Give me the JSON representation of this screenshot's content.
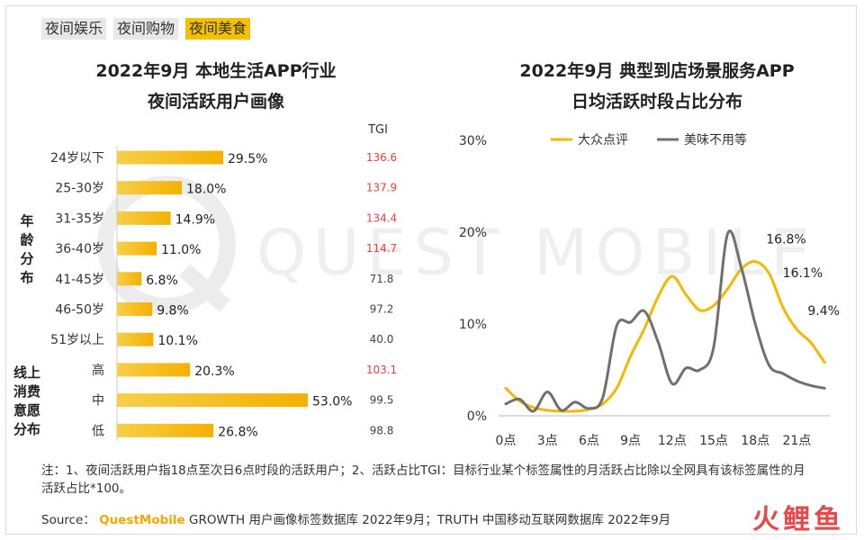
{
  "tabs": [
    {
      "label": "夜间娱乐",
      "active": false
    },
    {
      "label": "夜间购物",
      "active": false
    },
    {
      "label": "夜间美食",
      "active": true
    }
  ],
  "watermark": "QUEST MOBILE",
  "left_title_line1": "2022年9月 本地生活APP行业",
  "left_title_line2": "夜间活跃用户画像",
  "right_title_line1": "2022年9月 典型到店场景服务APP",
  "right_title_line2": "日均活跃时段占比分布",
  "note": "注：1、夜间活跃用户指18点至次日6点时段的活跃用户；2、活跃占比TGI：目标行业某个标签属性的月活跃占比除以全网具有该标签属性的月活跃占比*100。",
  "source_prefix": "Source：",
  "source_brand": "QuestMobile",
  "source_rest": "GROWTH 用户画像标签数据库 2022年9月；TRUTH 中国移动互联网数据库 2022年9月",
  "brand_logo": "火鲤鱼",
  "colors": {
    "gold": "#f5b800",
    "gray": "#707070",
    "red": "#e84040"
  },
  "chart_data": [
    {
      "type": "bar",
      "orientation": "horizontal",
      "title": "2022年9月 本地生活APP行业 夜间活跃用户画像",
      "tgi_header": "TGI",
      "groups": [
        {
          "label": "年龄分布",
          "start": 0,
          "end": 6
        },
        {
          "label": "线上消费意愿分布",
          "start": 7,
          "end": 9
        }
      ],
      "categories": [
        "24岁以下",
        "25-30岁",
        "31-35岁",
        "36-40岁",
        "41-45岁",
        "46-50岁",
        "51岁以上",
        "高",
        "中",
        "低"
      ],
      "values": [
        29.5,
        18.0,
        14.9,
        11.0,
        6.8,
        9.8,
        10.1,
        20.3,
        53.0,
        26.8
      ],
      "value_labels": [
        "29.5%",
        "18.0%",
        "14.9%",
        "11.0%",
        "6.8%",
        "9.8%",
        "10.1%",
        "20.3%",
        "53.0%",
        "26.8%"
      ],
      "tgi": [
        "136.6",
        "137.9",
        "134.4",
        "114.7",
        "71.8",
        "97.2",
        "40.0",
        "103.1",
        "99.5",
        "98.8"
      ],
      "tgi_highlight": [
        true,
        true,
        true,
        true,
        false,
        false,
        false,
        true,
        false,
        false
      ]
    },
    {
      "type": "line",
      "title": "2022年9月 典型到店场景服务APP 日均活跃时段占比分布",
      "x_ticks": [
        "0点",
        "3点",
        "6点",
        "9点",
        "12点",
        "15点",
        "18点",
        "21点"
      ],
      "y_ticks": [
        "0%",
        "10%",
        "20%",
        "30%"
      ],
      "ylim": [
        0,
        30
      ],
      "xlim": [
        0,
        23
      ],
      "legend_position": "top",
      "series": [
        {
          "name": "大众点评",
          "color": "#f5b800",
          "hours": [
            0,
            1,
            2,
            3,
            4,
            5,
            6,
            7,
            8,
            9,
            10,
            11,
            12,
            13,
            14,
            15,
            16,
            17,
            18,
            19,
            20,
            21,
            22,
            23
          ],
          "values": [
            3.0,
            1.6,
            0.9,
            0.6,
            0.5,
            0.5,
            0.7,
            1.3,
            3.0,
            6.5,
            9.5,
            13.0,
            15.2,
            13.2,
            11.5,
            12.0,
            13.8,
            16.0,
            16.8,
            15.5,
            11.8,
            9.4,
            8.0,
            5.8
          ]
        },
        {
          "name": "美味不用等",
          "color": "#707070",
          "hours": [
            0,
            1,
            2,
            3,
            4,
            5,
            6,
            7,
            8,
            9,
            10,
            11,
            12,
            13,
            14,
            15,
            16,
            17,
            18,
            19,
            20,
            21,
            22,
            23
          ],
          "values": [
            1.3,
            1.8,
            0.5,
            2.6,
            0.6,
            1.5,
            0.8,
            2.0,
            9.8,
            10.2,
            11.4,
            8.0,
            3.5,
            5.2,
            5.0,
            7.5,
            19.8,
            16.1,
            10.0,
            5.5,
            4.6,
            3.8,
            3.3,
            3.0
          ]
        }
      ],
      "annotations": [
        {
          "text": "16.8%",
          "x": 18.0,
          "y": 16.8
        },
        {
          "text": "16.1%",
          "x": 19.2,
          "y": 16.1
        },
        {
          "text": "9.4%",
          "x": 21.0,
          "y": 9.4
        }
      ]
    }
  ]
}
